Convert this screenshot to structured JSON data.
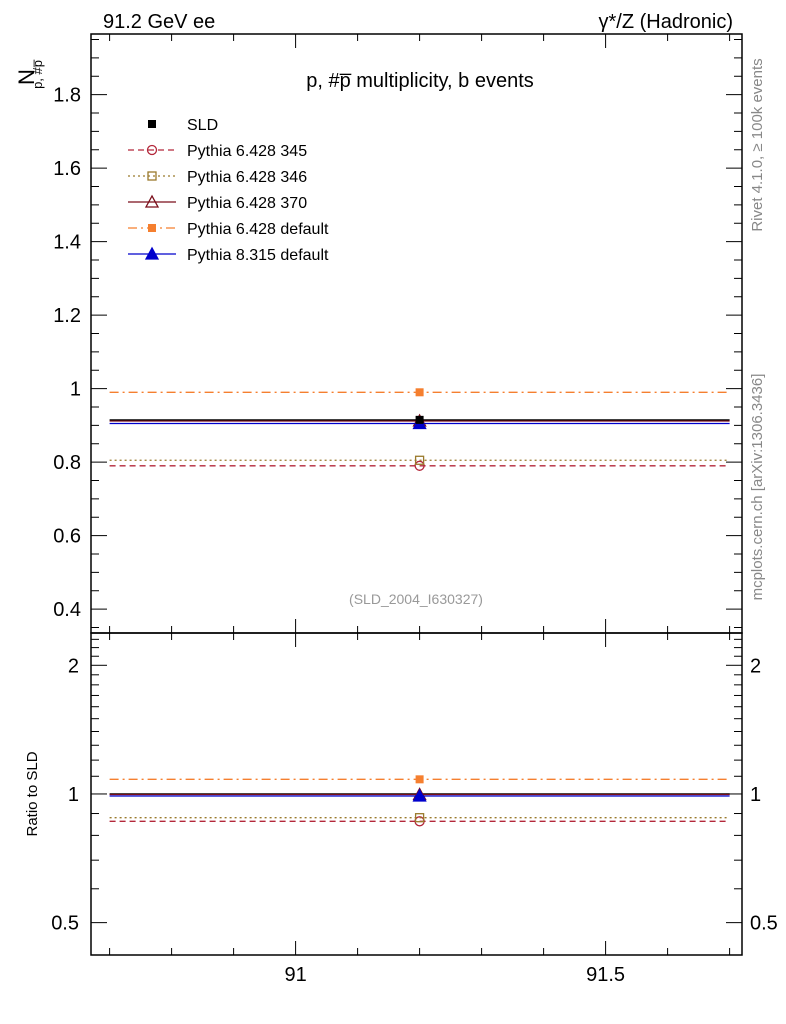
{
  "header": {
    "left": "91.2 GeV ee",
    "right": "γ*/Z (Hadronic)"
  },
  "side_labels": {
    "rivet": "Rivet 4.1.0, ≥ 100k events",
    "mcplots": "mcplots.cern.ch [arXiv:1306.3436]"
  },
  "chart_data": [
    {
      "type": "scatter",
      "panel": "main",
      "title": "p, #p̅ multiplicity, b events",
      "ylabel": "N",
      "ylabel_sub": "p, #p̅",
      "xlabel": "",
      "xlim": [
        90.67,
        91.72
      ],
      "ylim": [
        0.335,
        1.965
      ],
      "yticks": [
        0.4,
        0.6,
        0.8,
        1.0,
        1.2,
        1.4,
        1.6,
        1.8
      ],
      "ytick_labels": [
        "0.4",
        "0.6",
        "0.8",
        "1",
        "1.2",
        "1.4",
        "1.6",
        "1.8"
      ],
      "watermark": "(SLD_2004_I630327)",
      "legend_position": "top-left",
      "series": [
        {
          "name": "SLD",
          "x": 91.2,
          "xerr": [
            90.7,
            91.7
          ],
          "y": 0.915,
          "color": "#000000",
          "marker": "square-filled",
          "line": "none"
        },
        {
          "name": "Pythia 6.428 345",
          "x": 91.2,
          "xerr": [
            90.7,
            91.7
          ],
          "y": 0.79,
          "color": "#b3273a",
          "marker": "circle-open",
          "line": "dashed"
        },
        {
          "name": "Pythia 6.428 346",
          "x": 91.2,
          "xerr": [
            90.7,
            91.7
          ],
          "y": 0.805,
          "color": "#9a7a2c",
          "marker": "square-open",
          "line": "dotted"
        },
        {
          "name": "Pythia 6.428 370",
          "x": 91.2,
          "xerr": [
            90.7,
            91.7
          ],
          "y": 0.912,
          "color": "#7a0e1a",
          "marker": "triangle-open",
          "line": "solid"
        },
        {
          "name": "Pythia 6.428 default",
          "x": 91.2,
          "xerr": [
            90.7,
            91.7
          ],
          "y": 0.99,
          "color": "#f57f2f",
          "marker": "square-filled",
          "line": "dashdot"
        },
        {
          "name": "Pythia 8.315 default",
          "x": 91.2,
          "xerr": [
            90.7,
            91.7
          ],
          "y": 0.905,
          "color": "#0000cc",
          "marker": "triangle-filled",
          "line": "solid"
        }
      ]
    },
    {
      "type": "scatter",
      "panel": "ratio",
      "ylabel": "Ratio to SLD",
      "xlabel": "",
      "yscale": "log",
      "xlim": [
        90.67,
        91.72
      ],
      "ylim": [
        0.42,
        2.38
      ],
      "yticks": [
        0.5,
        1,
        2
      ],
      "ytick_labels": [
        "0.5",
        "1",
        "2"
      ],
      "xticks": [
        91,
        91.5
      ],
      "xtick_labels": [
        "91",
        "91.5"
      ],
      "series": [
        {
          "name": "Pythia 6.428 345",
          "y": 0.863
        },
        {
          "name": "Pythia 6.428 346",
          "y": 0.88
        },
        {
          "name": "Pythia 6.428 370",
          "y": 0.997
        },
        {
          "name": "Pythia 6.428 default",
          "y": 1.082
        },
        {
          "name": "Pythia 8.315 default",
          "y": 0.989
        }
      ]
    }
  ]
}
